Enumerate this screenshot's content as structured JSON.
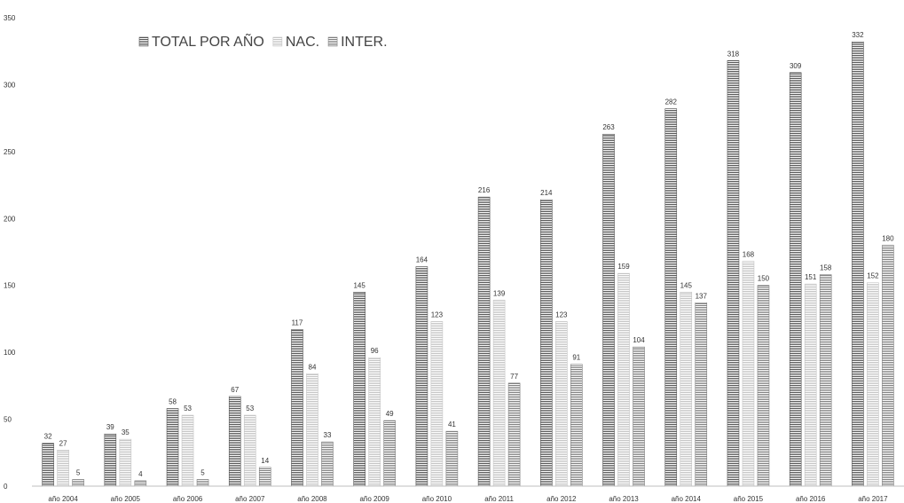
{
  "chart_data": {
    "type": "bar",
    "title": "",
    "xlabel": "",
    "ylabel": "",
    "ylim": [
      0,
      350
    ],
    "yticks": [
      0,
      50,
      100,
      150,
      200,
      250,
      300,
      350
    ],
    "grid": false,
    "legend_position": "top-left",
    "categories": [
      "año 2004",
      "año 2005",
      "año 2006",
      "año 2007",
      "año 2008",
      "año 2009",
      "año 2010",
      "año 2011",
      "año 2012",
      "año 2013",
      "año 2014",
      "año 2015",
      "año 2016",
      "año 2017"
    ],
    "series": [
      {
        "name": "TOTAL POR AÑO",
        "color": "#555555",
        "values": [
          32,
          39,
          58,
          67,
          117,
          145,
          164,
          216,
          214,
          263,
          282,
          318,
          309,
          332
        ]
      },
      {
        "name": "NAC.",
        "color": "#c4c4c4",
        "values": [
          27,
          35,
          53,
          53,
          84,
          96,
          123,
          139,
          123,
          159,
          145,
          168,
          151,
          152
        ]
      },
      {
        "name": "INTER.",
        "color": "#7f7f7f",
        "values": [
          5,
          4,
          5,
          14,
          33,
          49,
          41,
          77,
          91,
          104,
          137,
          150,
          158,
          180
        ]
      }
    ]
  }
}
